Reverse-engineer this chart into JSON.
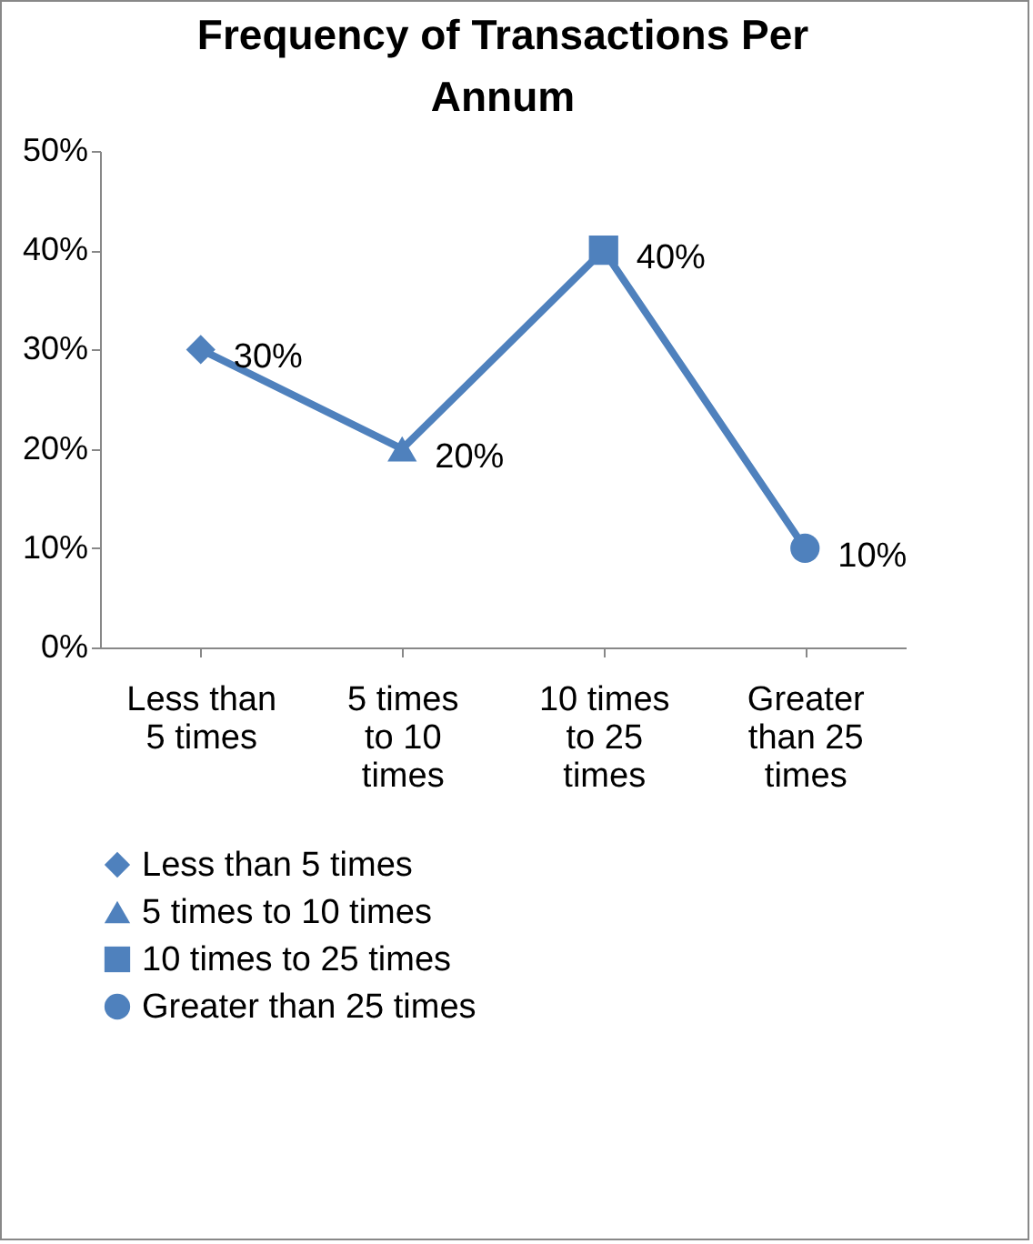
{
  "chart_data": {
    "type": "line",
    "title": "Frequency of Transactions Per Annum",
    "categories": [
      "Less than 5 times",
      "5 times to 10 times",
      "10 times to 25 times",
      "Greater than 25 times"
    ],
    "series": [
      {
        "color": "#4f81bd",
        "values": [
          30,
          20,
          40,
          10
        ],
        "marker": "none"
      },
      {
        "name": "Less than 5 times",
        "color": "#4f81bd",
        "marker": "diamond",
        "values": [
          30,
          null,
          null,
          null
        ],
        "value_labels": [
          "30%",
          null,
          null,
          null
        ]
      },
      {
        "name": "5 times to 10 times",
        "color": "#4f81bd",
        "marker": "triangle",
        "values": [
          null,
          20,
          null,
          null
        ],
        "value_labels": [
          null,
          "20%",
          null,
          null
        ]
      },
      {
        "name": "10 times to 25 times",
        "color": "#4f81bd",
        "marker": "square",
        "values": [
          null,
          null,
          40,
          null
        ],
        "value_labels": [
          null,
          null,
          "40%",
          null
        ]
      },
      {
        "name": "Greater than 25 times",
        "color": "#4f81bd",
        "marker": "circle",
        "values": [
          null,
          null,
          null,
          10
        ],
        "value_labels": [
          null,
          null,
          null,
          "10%"
        ]
      }
    ],
    "ylim": [
      0,
      50
    ],
    "yticks": [
      {
        "value": 0,
        "label": "0%"
      },
      {
        "value": 10,
        "label": "10%"
      },
      {
        "value": 20,
        "label": "20%"
      },
      {
        "value": 30,
        "label": "30%"
      },
      {
        "value": 40,
        "label": "40%"
      },
      {
        "value": 50,
        "label": "50%"
      }
    ],
    "grid": false,
    "legend": "bottom"
  }
}
